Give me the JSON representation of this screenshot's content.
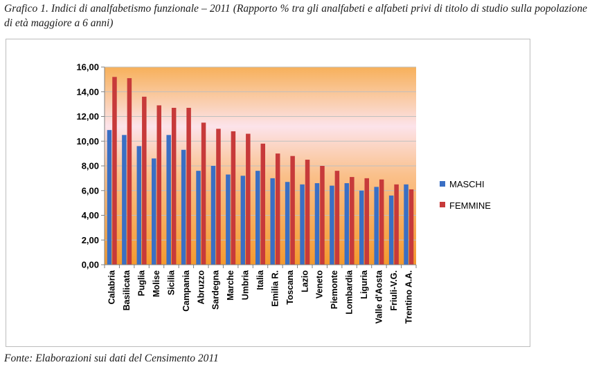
{
  "caption": "Grafico 1. Indici di analfabetismo funzionale – 2011 (Rapporto % tra gli analfabeti e alfabeti privi di titolo di studio sulla popolazione di età maggiore a 6 anni)",
  "source": "Fonte: Elaborazioni sui dati del Censimento 2011",
  "colors": {
    "maschi": "#3a6fc4",
    "femmine": "#c73a3a",
    "bg_top": "#f7b05a",
    "bg_mid": "#fce3ea",
    "grid": "#bfbfbf"
  },
  "chart_data": {
    "type": "bar",
    "categories": [
      "Calabria",
      "Basilicata",
      "Puglia",
      "Molise",
      "Sicilia",
      "Campania",
      "Abruzzo",
      "Sardegna",
      "Marche",
      "Umbria",
      "Italia",
      "Emilia R.",
      "Toscana",
      "Lazio",
      "Veneto",
      "Piemonte",
      "Lombardia",
      "Liguria",
      "Valle d'Aosta",
      "Friuli-V.G.",
      "Trentino A.A."
    ],
    "series": [
      {
        "name": "MASCHI",
        "values": [
          10.9,
          10.5,
          9.6,
          8.6,
          10.5,
          9.3,
          7.6,
          8.0,
          7.3,
          7.2,
          7.6,
          7.0,
          6.7,
          6.5,
          6.6,
          6.4,
          6.6,
          6.0,
          6.3,
          5.6,
          6.5
        ]
      },
      {
        "name": "FEMMINE",
        "values": [
          15.2,
          15.1,
          13.6,
          12.9,
          12.7,
          12.7,
          11.5,
          11.0,
          10.8,
          10.6,
          9.8,
          9.0,
          8.8,
          8.5,
          8.0,
          7.6,
          7.1,
          7.0,
          6.9,
          6.5,
          6.1
        ]
      }
    ],
    "ylim": [
      0,
      16
    ],
    "yticks": [
      "0,00",
      "2,00",
      "4,00",
      "6,00",
      "8,00",
      "10,00",
      "12,00",
      "14,00",
      "16,00"
    ],
    "grid": true,
    "legend_position": "right"
  }
}
